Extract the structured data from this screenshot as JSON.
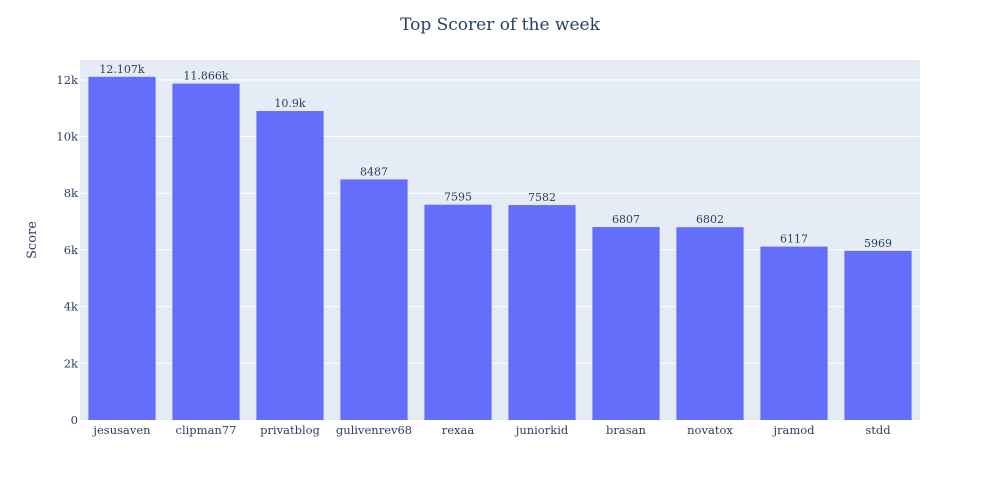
{
  "chart_data": {
    "type": "bar",
    "title": "Top Scorer of the week",
    "ylabel": "Score",
    "xlabel": "",
    "ylim": [
      0,
      12700
    ],
    "yticks": [
      0,
      2000,
      4000,
      6000,
      8000,
      10000,
      12000
    ],
    "ytick_labels": [
      "0",
      "2k",
      "4k",
      "6k",
      "8k",
      "10k",
      "12k"
    ],
    "grid": true,
    "categories": [
      "jesusaven",
      "clipman77",
      "privatblog",
      "gulivenrev68",
      "rexaa",
      "juniorkid",
      "brasan",
      "novatox",
      "jramod",
      "stdd"
    ],
    "values": [
      12107,
      11866,
      10900,
      8487,
      7595,
      7582,
      6807,
      6802,
      6117,
      5969
    ],
    "value_labels": [
      "12.107k",
      "11.866k",
      "10.9k",
      "8487",
      "7595",
      "7582",
      "6807",
      "6802",
      "6117",
      "5969"
    ],
    "colors": {
      "bar": "#636efa",
      "plot_bg": "#e5ecf6",
      "grid": "#ffffff",
      "text": "#2a3f5f"
    }
  }
}
